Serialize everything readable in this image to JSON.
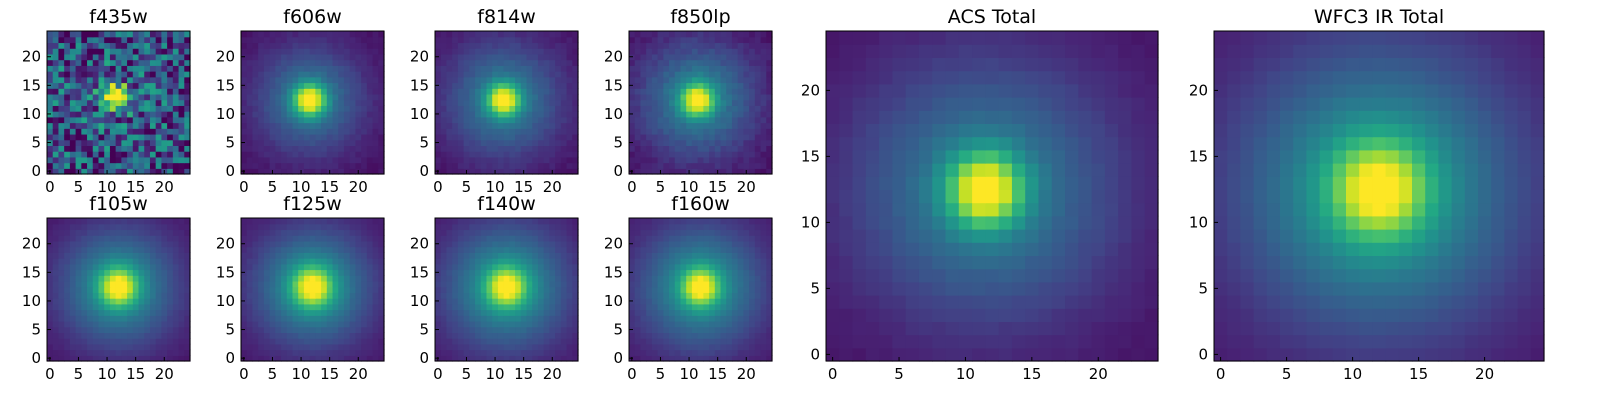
{
  "figure": {
    "background": "#ffffff",
    "colormap": "viridis"
  },
  "chart_data": [
    {
      "type": "heatmap",
      "title": "f435w",
      "band": "ACS",
      "noise": 0.32,
      "peak": [
        11.5,
        13
      ],
      "sigma": [
        1.6,
        1.4
      ],
      "halo": 0.1,
      "halo_sigma": 7,
      "background": 0.22,
      "xticks": [
        0,
        5,
        10,
        15,
        20
      ],
      "yticks": [
        0,
        5,
        10,
        15,
        20
      ],
      "xlim": [
        0,
        24
      ],
      "ylim": [
        0,
        24
      ]
    },
    {
      "type": "heatmap",
      "title": "f606w",
      "band": "ACS",
      "noise": 0.02,
      "peak": [
        11.5,
        12.5
      ],
      "sigma": [
        1.9,
        1.9
      ],
      "halo": 0.38,
      "halo_sigma": 6.5,
      "background": 0.04,
      "xticks": [
        0,
        5,
        10,
        15,
        20
      ],
      "yticks": [
        0,
        5,
        10,
        15,
        20
      ],
      "xlim": [
        0,
        24
      ],
      "ylim": [
        0,
        24
      ]
    },
    {
      "type": "heatmap",
      "title": "f814w",
      "band": "ACS",
      "noise": 0.02,
      "peak": [
        11.5,
        12.5
      ],
      "sigma": [
        1.9,
        1.9
      ],
      "halo": 0.4,
      "halo_sigma": 7,
      "background": 0.04,
      "xticks": [
        0,
        5,
        10,
        15,
        20
      ],
      "yticks": [
        0,
        5,
        10,
        15,
        20
      ],
      "xlim": [
        0,
        24
      ],
      "ylim": [
        0,
        24
      ]
    },
    {
      "type": "heatmap",
      "title": "f850lp",
      "band": "ACS",
      "noise": 0.03,
      "peak": [
        11.5,
        12.5
      ],
      "sigma": [
        1.9,
        1.9
      ],
      "halo": 0.42,
      "halo_sigma": 7,
      "background": 0.04,
      "xticks": [
        0,
        5,
        10,
        15,
        20
      ],
      "yticks": [
        0,
        5,
        10,
        15,
        20
      ],
      "xlim": [
        0,
        24
      ],
      "ylim": [
        0,
        24
      ]
    },
    {
      "type": "heatmap",
      "title": "f105w",
      "band": "IR",
      "noise": 0.01,
      "peak": [
        12,
        12.5
      ],
      "sigma": [
        2.2,
        2.2
      ],
      "halo": 0.48,
      "halo_sigma": 7,
      "background": 0.05,
      "xticks": [
        0,
        5,
        10,
        15,
        20
      ],
      "yticks": [
        0,
        5,
        10,
        15,
        20
      ],
      "xlim": [
        0,
        24
      ],
      "ylim": [
        0,
        24
      ]
    },
    {
      "type": "heatmap",
      "title": "f125w",
      "band": "IR",
      "noise": 0.01,
      "peak": [
        12,
        12.5
      ],
      "sigma": [
        2.3,
        2.3
      ],
      "halo": 0.5,
      "halo_sigma": 7,
      "background": 0.05,
      "xticks": [
        0,
        5,
        10,
        15,
        20
      ],
      "yticks": [
        0,
        5,
        10,
        15,
        20
      ],
      "xlim": [
        0,
        24
      ],
      "ylim": [
        0,
        24
      ]
    },
    {
      "type": "heatmap",
      "title": "f140w",
      "band": "IR",
      "noise": 0.01,
      "peak": [
        12,
        12.5
      ],
      "sigma": [
        2.3,
        2.3
      ],
      "halo": 0.5,
      "halo_sigma": 7.5,
      "background": 0.05,
      "xticks": [
        0,
        5,
        10,
        15,
        20
      ],
      "yticks": [
        0,
        5,
        10,
        15,
        20
      ],
      "xlim": [
        0,
        24
      ],
      "ylim": [
        0,
        24
      ]
    },
    {
      "type": "heatmap",
      "title": "f160w",
      "band": "IR",
      "noise": 0.01,
      "peak": [
        12,
        12.5
      ],
      "sigma": [
        2.2,
        2.2
      ],
      "halo": 0.48,
      "halo_sigma": 7.5,
      "background": 0.05,
      "xticks": [
        0,
        5,
        10,
        15,
        20
      ],
      "yticks": [
        0,
        5,
        10,
        15,
        20
      ],
      "xlim": [
        0,
        24
      ],
      "ylim": [
        0,
        24
      ]
    },
    {
      "type": "heatmap",
      "title": "ACS Total",
      "band": "ACS",
      "noise": 0.01,
      "peak": [
        11.5,
        12.5
      ],
      "sigma": [
        1.9,
        1.9
      ],
      "halo": 0.4,
      "halo_sigma": 7,
      "background": 0.04,
      "xticks": [
        0,
        5,
        10,
        15,
        20
      ],
      "yticks": [
        0,
        5,
        10,
        15,
        20
      ],
      "xlim": [
        0,
        24
      ],
      "ylim": [
        0,
        24
      ]
    },
    {
      "type": "heatmap",
      "title": "WFC3 IR Total",
      "band": "IR",
      "noise": 0.005,
      "peak": [
        12,
        12.5
      ],
      "sigma": [
        2.4,
        2.4
      ],
      "halo": 0.52,
      "halo_sigma": 7.5,
      "background": 0.05,
      "xticks": [
        0,
        5,
        10,
        15,
        20
      ],
      "yticks": [
        0,
        5,
        10,
        15,
        20
      ],
      "xlim": [
        0,
        24
      ],
      "ylim": [
        0,
        24
      ]
    }
  ]
}
